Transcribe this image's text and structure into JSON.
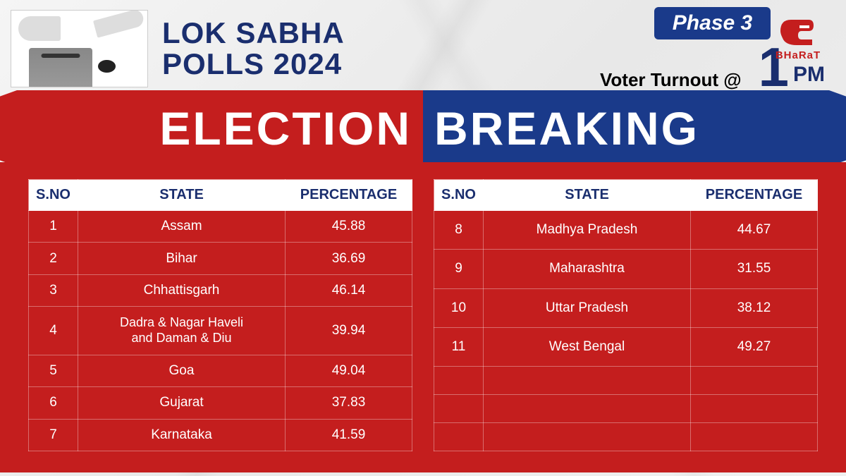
{
  "header": {
    "title_line1": "LOK SABHA",
    "title_line2": "POLLS 2024",
    "phase_label": "Phase 3",
    "turnout_label": "Voter Turnout @",
    "time_num": "1",
    "time_unit": "PM",
    "logo_text": "BHaRaT",
    "logo_color": "#c41e1e"
  },
  "banner": {
    "left": "ELECTION",
    "right": "BREAKING",
    "left_bg": "#c41e1e",
    "right_bg": "#1a3a8a",
    "text_color": "#ffffff"
  },
  "columns": {
    "sno": "S.NO",
    "state": "STATE",
    "pct": "PERCENTAGE"
  },
  "colors": {
    "table_bg": "#c41e1e",
    "header_cell_bg": "#ffffff",
    "header_cell_text": "#1a2e6e",
    "cell_text": "#ffffff",
    "title_color": "#1a2e6e",
    "phase_bg": "#1a3a8a"
  },
  "left_rows": [
    {
      "sno": "1",
      "state": "Assam",
      "pct": "45.88"
    },
    {
      "sno": "2",
      "state": "Bihar",
      "pct": "36.69"
    },
    {
      "sno": "3",
      "state": "Chhattisgarh",
      "pct": "46.14"
    },
    {
      "sno": "4",
      "state": "Dadra & Nagar Haveli and Daman & Diu",
      "pct": "39.94"
    },
    {
      "sno": "5",
      "state": "Goa",
      "pct": "49.04"
    },
    {
      "sno": "6",
      "state": "Gujarat",
      "pct": "37.83"
    },
    {
      "sno": "7",
      "state": "Karnataka",
      "pct": "41.59"
    }
  ],
  "right_rows": [
    {
      "sno": "8",
      "state": "Madhya Pradesh",
      "pct": "44.67"
    },
    {
      "sno": "9",
      "state": "Maharashtra",
      "pct": "31.55"
    },
    {
      "sno": "10",
      "state": "Uttar Pradesh",
      "pct": "38.12"
    },
    {
      "sno": "11",
      "state": "West Bengal",
      "pct": "49.27"
    }
  ],
  "right_empty_rows": 3
}
